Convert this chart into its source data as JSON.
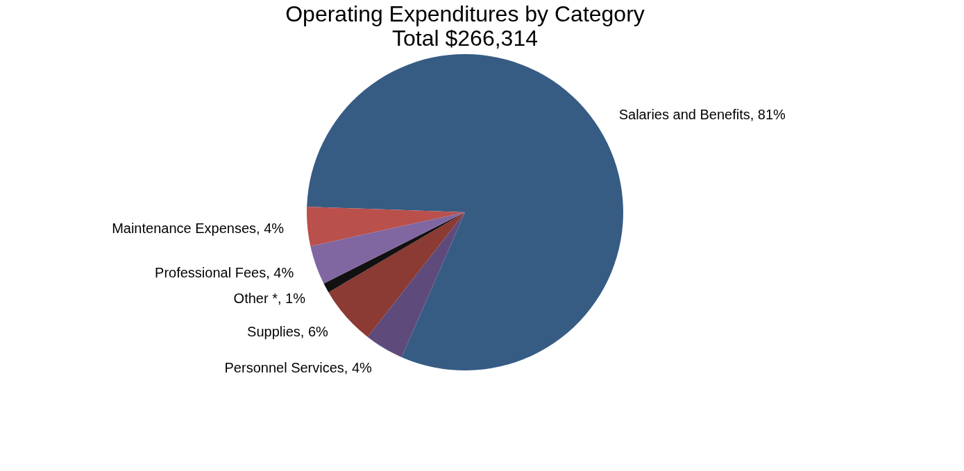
{
  "chart_data": {
    "type": "pie",
    "title": "Operating Expenditures by Category",
    "subtitle": "Total $266,314",
    "categories": [
      "Salaries and Benefits",
      "Personnel Services",
      "Supplies",
      "Other *",
      "Professional Fees",
      "Maintenance Expenses"
    ],
    "values": [
      81,
      4,
      6,
      1,
      4,
      4
    ],
    "colors": [
      "#365c84",
      "#5e4b7c",
      "#8b3a34",
      "#111111",
      "#8067a2",
      "#b9504c"
    ],
    "value_labels": [
      "81%",
      "4%",
      "6%",
      "1%",
      "4%",
      "4%"
    ],
    "legend": false
  }
}
